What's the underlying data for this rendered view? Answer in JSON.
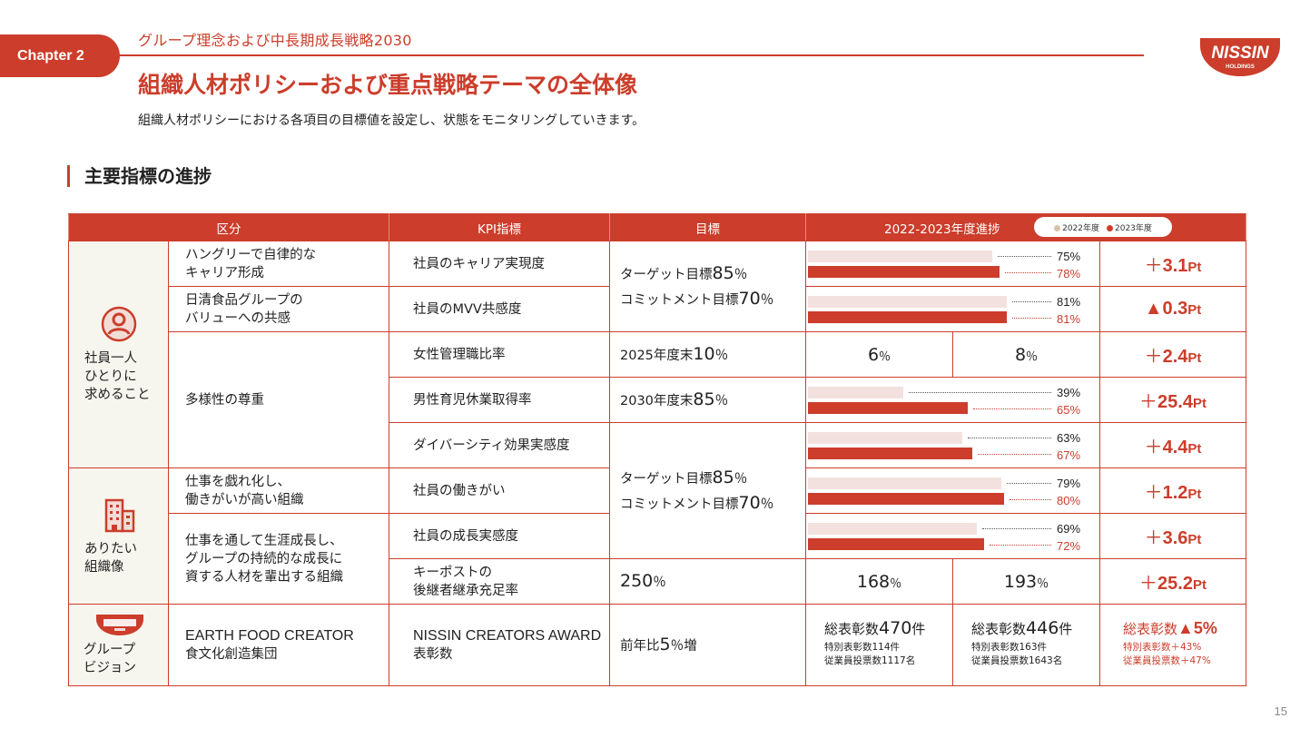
{
  "header": {
    "chapter": "Chapter  2",
    "breadcrumb": "グループ理念および中長期成長戦略2030",
    "title": "組織人材ポリシーおよび重点戦略テーマの全体像",
    "subtitle": "組織人材ポリシーにおける各項目の目標値を設定し、状態をモニタリングしていきます。",
    "logo_text": "NISSIN",
    "logo_sub": "HOLDINGS"
  },
  "section_title": "主要指標の進捗",
  "table": {
    "headers": [
      "区分",
      "KPI指標",
      "目標",
      "2022-2023年度進捗"
    ],
    "legend": [
      "2022年度",
      "2023年度"
    ],
    "colors": {
      "y2022": "#f3e1df",
      "y2023": "#cc3d2b",
      "accent": "#cc3d2b"
    },
    "categories": [
      {
        "label1": "社員一人",
        "label2": "ひとりに",
        "label3": "求めること",
        "icon": "person-icon"
      },
      {
        "label1": "ありたい",
        "label2": "組織像",
        "icon": "building-icon"
      },
      {
        "label1": "グループ",
        "label2": "ビジョン",
        "icon": "nissin-logo-icon"
      }
    ],
    "groups": {
      "g1a": "ハングリーで自律的な",
      "g1b": "キャリア形成",
      "g2a": "日清食品グループの",
      "g2b": "バリューへの共感",
      "g3": "多様性の尊重",
      "g4a": "仕事を戯れ化し、",
      "g4b": "働きがいが高い組織",
      "g5a": "仕事を通して生涯成長し、",
      "g5b": "グループの持続的な成長に",
      "g5c": "資する人材を輩出する組織",
      "g6a": "EARTH FOOD CREATOR",
      "g6b": "食文化創造集団"
    },
    "kpis": {
      "k1": "社員のキャリア実現度",
      "k2": "社員のMVV共感度",
      "k3": "女性管理職比率",
      "k4": "男性育児休業取得率",
      "k5": "ダイバーシティ効果実感度",
      "k6": "社員の働きがい",
      "k7": "社員の成長実感度",
      "k8a": "キーポストの",
      "k8b": "後継者継承充足率",
      "k9a": "NISSIN CREATORS AWARD",
      "k9b": "表彰数"
    },
    "targets": {
      "t1a_pre": "ターゲット目標",
      "t1a_num": "85",
      "t1a_unit": "％",
      "t1b_pre": "コミットメント目標",
      "t1b_num": "70",
      "t1b_unit": "％",
      "t2_pre": "2025年度末",
      "t2_num": "10",
      "t2_unit": "％",
      "t3_pre": "2030年度末",
      "t3_num": "85",
      "t3_unit": "％",
      "t4a_pre": "ターゲット目標",
      "t4a_num": "85",
      "t4a_unit": "％",
      "t4b_pre": "コミットメント目標",
      "t4b_num": "70",
      "t4b_unit": "％",
      "t5_num": "250",
      "t5_unit": "％",
      "t6_pre": "前年比",
      "t6_num": "5",
      "t6_unit": "％増"
    },
    "progress": {
      "k1": {
        "v2022": 75,
        "v2023": 78,
        "l2022": "75%",
        "l2023": "78%"
      },
      "k2": {
        "v2022": 81,
        "v2023": 81,
        "l2022": "81%",
        "l2023": "81%"
      },
      "k4": {
        "v2022": 39,
        "v2023": 65,
        "l2022": "39%",
        "l2023": "65%"
      },
      "k5": {
        "v2022": 63,
        "v2023": 67,
        "l2022": "63%",
        "l2023": "67%"
      },
      "k6": {
        "v2022": 79,
        "v2023": 80,
        "l2022": "79%",
        "l2023": "80%"
      },
      "k7": {
        "v2022": 69,
        "v2023": 72,
        "l2022": "69%",
        "l2023": "72%"
      },
      "k3": {
        "n2022": "6",
        "n2023": "8",
        "unit": "％"
      },
      "k8": {
        "n2022": "168",
        "n2023": "193",
        "unit": "％"
      }
    },
    "award": {
      "y2022_pre": "総表彰数",
      "y2022_num": "470",
      "y2022_unit": "件",
      "y2022_s1": "特別表彰数114件",
      "y2022_s2": "従業員投票数1117名",
      "y2023_pre": "総表彰数",
      "y2023_num": "446",
      "y2023_unit": "件",
      "y2023_s1": "特別表彰数163件",
      "y2023_s2": "従業員投票数1643名",
      "diff_pre": "総表彰数",
      "diff_val": "▲5%",
      "diff_s1": "特別表彰数＋43%",
      "diff_s2": "従業員投票数＋47%"
    },
    "diffs": {
      "k1": {
        "sign": "＋",
        "val": "3.1",
        "unit": "Pt"
      },
      "k2": {
        "sign": "",
        "val": "▲0.3",
        "unit": "Pt"
      },
      "k3": {
        "sign": "＋",
        "val": "2.4",
        "unit": "Pt"
      },
      "k4": {
        "sign": "＋",
        "val": "25.4",
        "unit": "Pt"
      },
      "k5": {
        "sign": "＋",
        "val": "4.4",
        "unit": "Pt"
      },
      "k6": {
        "sign": "＋",
        "val": "1.2",
        "unit": "Pt"
      },
      "k7": {
        "sign": "＋",
        "val": "3.6",
        "unit": "Pt"
      },
      "k8": {
        "sign": "＋",
        "val": "25.2",
        "unit": "Pt"
      }
    }
  },
  "page_number": "15"
}
